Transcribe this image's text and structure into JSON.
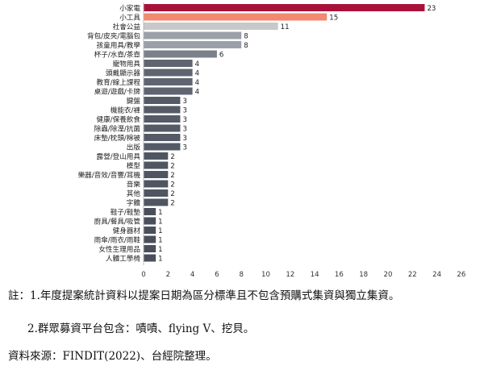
{
  "chart_data": {
    "type": "bar",
    "orientation": "horizontal",
    "categories": [
      "小家電",
      "小工具",
      "社會公益",
      "背包/皮夾/電腦包",
      "孩童用具/教學",
      "杯子/水壺/茶壺",
      "寵物用具",
      "頭戴顯示器",
      "教育/線上課程",
      "桌遊/遊戲/卡牌",
      "鍵盤",
      "機能衣/褲",
      "健康/保養飲食",
      "除蟲/除溼/抗菌",
      "床墊/枕頭/棉被",
      "出版",
      "露營/登山用具",
      "模型",
      "樂器/音效/音響/耳機",
      "音樂",
      "其他",
      "字體",
      "鞋子/鞋墊",
      "廚具/餐具/吸管",
      "健身器材",
      "雨傘/雨衣/雨鞋",
      "女性生理用品",
      "人體工學椅"
    ],
    "values": [
      23,
      15,
      11,
      8,
      8,
      6,
      4,
      4,
      4,
      4,
      3,
      3,
      3,
      3,
      3,
      3,
      2,
      2,
      2,
      2,
      2,
      2,
      1,
      1,
      1,
      1,
      1,
      1
    ],
    "bar_colors": [
      "#a8123a",
      "#f3896e",
      "#c8c8c8",
      "#9ba0a8",
      "#9ba0a8",
      "#7b818a",
      "#5f6570",
      "#5f6570",
      "#5f6570",
      "#5f6570",
      "#555b66",
      "#555b66",
      "#555b66",
      "#555b66",
      "#555b66",
      "#555b66",
      "#4f5561",
      "#4f5561",
      "#4f5561",
      "#4f5561",
      "#4f5561",
      "#4f5561",
      "#4a4f5b",
      "#4a4f5b",
      "#4a4f5b",
      "#4a4f5b",
      "#4a4f5b",
      "#4a4f5b"
    ],
    "x_ticks": [
      0,
      2,
      4,
      6,
      8,
      10,
      12,
      14,
      16,
      18,
      20,
      22,
      24,
      26
    ],
    "xlim": [
      0,
      26
    ],
    "title": "",
    "xlabel": "",
    "ylabel": "",
    "grid": false,
    "data_labels": true
  },
  "notes": {
    "note1": "註：1.年度提案統計資料以提案日期為區分標準且不包含預購式集資與獨立集資。",
    "note2": "2.群眾募資平台包含：嘖嘖、flying V、挖貝。"
  },
  "source": "資料來源：FINDIT(2022)、台經院整理。"
}
